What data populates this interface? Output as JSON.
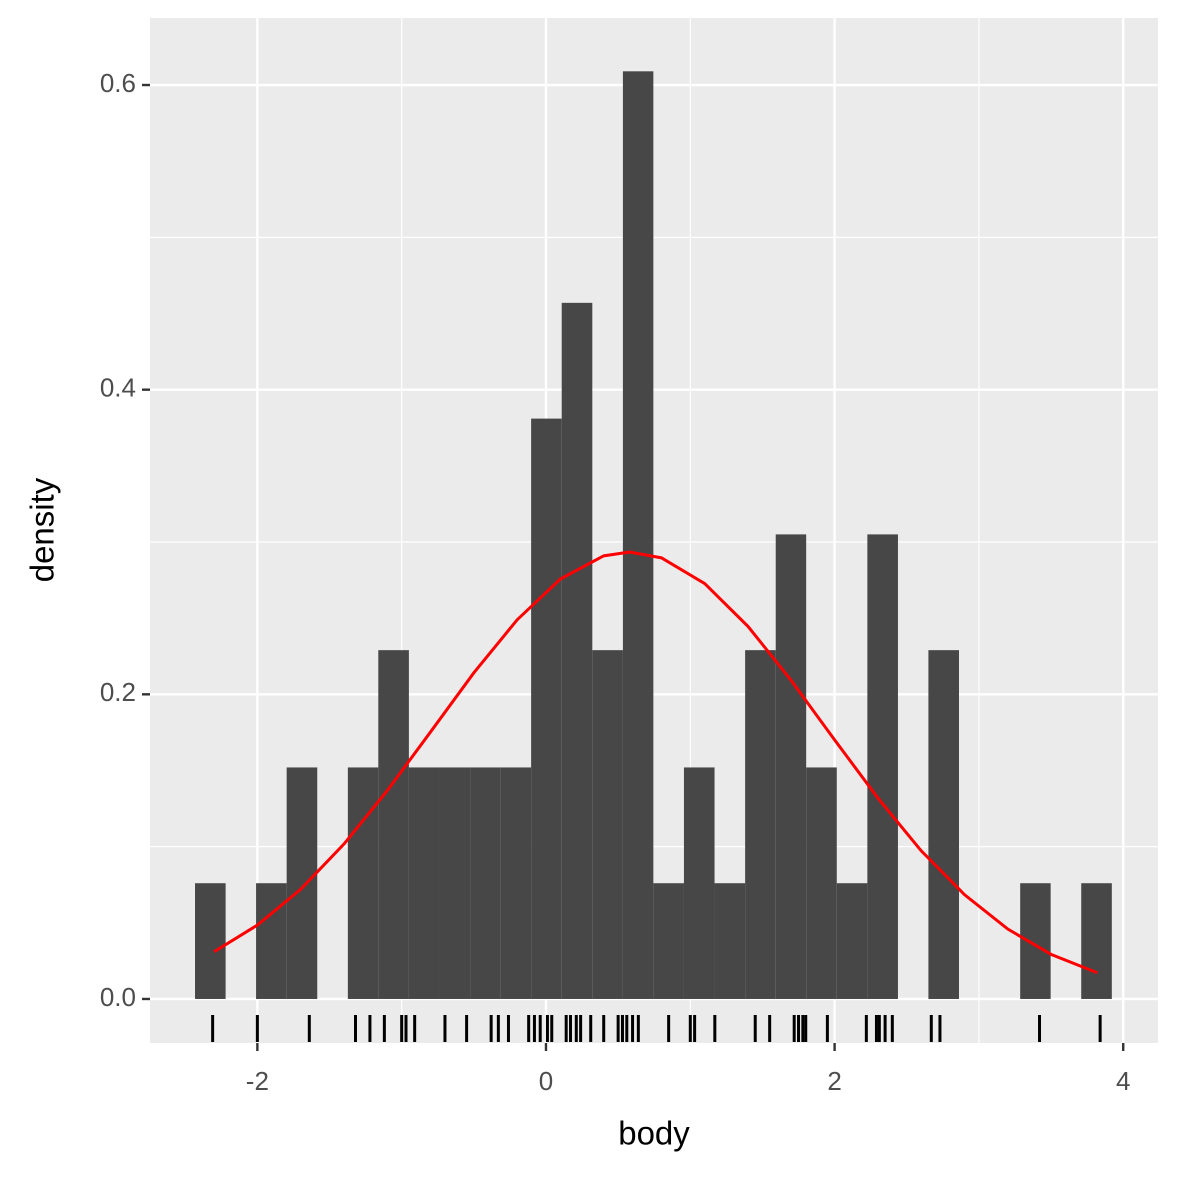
{
  "chart_data": {
    "type": "histogram",
    "xlabel": "body",
    "ylabel": "density",
    "bins": [
      -2.432,
      -2.22,
      -2.009,
      -1.797,
      -1.585,
      -1.373,
      -1.162,
      -0.95,
      -0.738,
      -0.526,
      -0.314,
      -0.103,
      0.109,
      0.321,
      0.533,
      0.744,
      0.956,
      1.168,
      1.38,
      1.592,
      1.803,
      2.015,
      2.227,
      2.439,
      2.65,
      2.862,
      3.074,
      3.286,
      3.497,
      3.709,
      3.921
    ],
    "values": [
      0.076,
      0,
      0.076,
      0.152,
      0,
      0.152,
      0.229,
      0.152,
      0.152,
      0.152,
      0.152,
      0.381,
      0.457,
      0.229,
      0.609,
      0.076,
      0.152,
      0.076,
      0.229,
      0.305,
      0.152,
      0.076,
      0.305,
      0,
      0.229,
      0,
      0,
      0.076,
      0,
      0.076
    ],
    "color": "#474747",
    "density_curve": {
      "color": "#ff0000",
      "x": [
        -2.3,
        -2.0,
        -1.7,
        -1.4,
        -1.1,
        -0.8,
        -0.5,
        -0.2,
        0.1,
        0.4,
        0.58,
        0.8,
        1.1,
        1.4,
        1.7,
        2.0,
        2.3,
        2.6,
        2.9,
        3.2,
        3.5,
        3.82
      ],
      "y": [
        0.031,
        0.0485,
        0.072,
        0.1017,
        0.1368,
        0.1753,
        0.2141,
        0.2489,
        0.2757,
        0.2909,
        0.2934,
        0.2896,
        0.2727,
        0.2446,
        0.209,
        0.1701,
        0.1319,
        0.0973,
        0.0685,
        0.0459,
        0.0293,
        0.0172
      ]
    },
    "rug": {
      "color": "#000000",
      "x": [
        -2.31,
        -2.0,
        -1.64,
        -1.32,
        -1.22,
        -1.12,
        -1.0,
        -0.97,
        -0.91,
        -0.7,
        -0.55,
        -0.38,
        -0.33,
        -0.26,
        -0.12,
        -0.08,
        -0.04,
        0.01,
        0.04,
        0.14,
        0.17,
        0.21,
        0.24,
        0.31,
        0.4,
        0.5,
        0.53,
        0.56,
        0.6,
        0.64,
        0.85,
        1.0,
        1.03,
        1.17,
        1.45,
        1.55,
        1.72,
        1.75,
        1.78,
        1.8,
        1.95,
        2.22,
        2.29,
        2.31,
        2.35,
        2.4,
        2.67,
        2.73,
        3.42,
        3.84
      ]
    },
    "xlim": [
      -2.744,
      4.241
    ],
    "ylim": [
      -0.0289,
      0.644
    ],
    "xticks": [
      -2,
      0,
      2,
      4
    ],
    "yticks": [
      {
        "value": 0,
        "label": "0.0"
      },
      0.2,
      0.4,
      0.6
    ],
    "x_minor_breaks": [
      -1,
      1,
      3
    ],
    "y_minor_breaks": [
      0.1,
      0.3,
      0.5
    ],
    "grid": true
  }
}
